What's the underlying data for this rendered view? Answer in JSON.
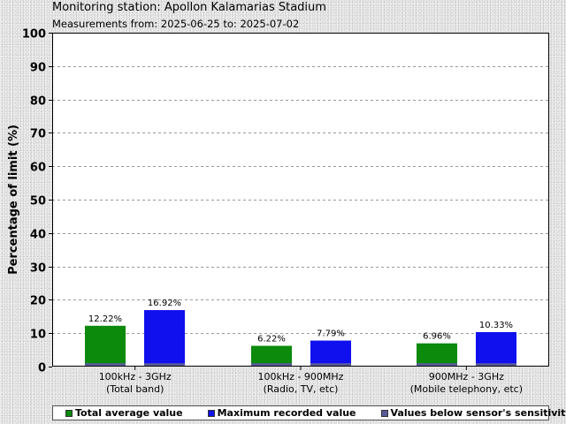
{
  "header": {
    "title": "Monitoring station: Apollon Kalamarias Stadium",
    "subtitle": "Measurements from: 2025-06-25 to: 2025-07-02"
  },
  "chart_data": {
    "type": "bar",
    "title": "Monitoring station: Apollon Kalamarias Stadium",
    "subtitle": "Measurements from: 2025-06-25 to: 2025-07-02",
    "xlabel": "",
    "ylabel": "Percentage of limit (%)",
    "ylim": [
      0,
      100
    ],
    "yticks": [
      0,
      10,
      20,
      30,
      40,
      50,
      60,
      70,
      80,
      90,
      100
    ],
    "grid": true,
    "legend_position": "bottom",
    "categories": [
      [
        "100kHz - 3GHz",
        "(Total band)"
      ],
      [
        "100kHz - 900MHz",
        "(Radio, TV, etc)"
      ],
      [
        "900MHz - 3GHz",
        "(Mobile telephony, etc)"
      ]
    ],
    "series": [
      {
        "name": "Total average value",
        "color": "#0b8a0b",
        "values": [
          12.22,
          6.22,
          6.96
        ],
        "labels": [
          "12.22%",
          "6.22%",
          "6.96%"
        ]
      },
      {
        "name": "Maximum recorded value",
        "color": "#1010ee",
        "values": [
          16.92,
          7.79,
          10.33
        ],
        "labels": [
          "16.92%",
          "7.79%",
          "10.33%"
        ]
      }
    ],
    "sensitivity": {
      "name": "Values below sensor's sensitivity",
      "color": "#5a5a9a",
      "value": 1
    }
  }
}
